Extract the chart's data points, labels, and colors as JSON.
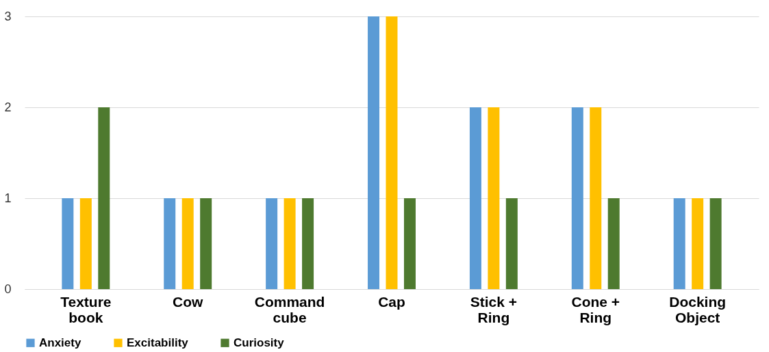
{
  "chart_data": {
    "type": "bar",
    "categories": [
      "Texture book",
      "Cow",
      "Command cube",
      "Cap",
      "Stick + Ring",
      "Cone + Ring",
      "Docking Object"
    ],
    "series": [
      {
        "name": "Anxiety",
        "color": "#5b9bd5",
        "values": [
          1,
          1,
          1,
          3,
          2,
          2,
          1
        ]
      },
      {
        "name": "Excitability",
        "color": "#ffc000",
        "values": [
          1,
          1,
          1,
          3,
          2,
          2,
          1
        ]
      },
      {
        "name": "Curiosity",
        "color": "#4e7a2f",
        "values": [
          2,
          1,
          1,
          1,
          1,
          1,
          1
        ]
      }
    ],
    "ylim": [
      0,
      3
    ],
    "yticks": [
      0,
      1,
      2,
      3
    ],
    "grid": "y",
    "legend": "bottom"
  }
}
